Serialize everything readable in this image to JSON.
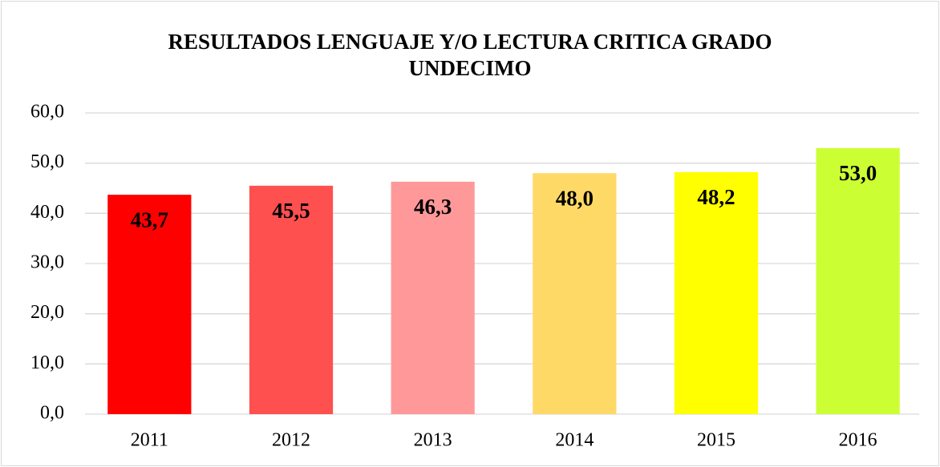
{
  "chart_data": {
    "type": "bar",
    "title": "RESULTADOS LENGUAJE Y/O LECTURA CRITICA  GRADO UNDECIMO",
    "categories": [
      "2011",
      "2012",
      "2013",
      "2014",
      "2015",
      "2016"
    ],
    "values": [
      43.7,
      45.5,
      46.3,
      48.0,
      48.2,
      53.0
    ],
    "value_labels": [
      "43,7",
      "45,5",
      "46,3",
      "48,0",
      "48,2",
      "53,0"
    ],
    "colors": [
      "#ff0000",
      "#ff5050",
      "#ff9999",
      "#ffd966",
      "#ffff00",
      "#ccff33"
    ],
    "ylim": [
      0,
      60
    ],
    "yticks": [
      {
        "value": 0,
        "label": "0,0"
      },
      {
        "value": 10,
        "label": "10,0"
      },
      {
        "value": 20,
        "label": "20,0"
      },
      {
        "value": 30,
        "label": "30,0"
      },
      {
        "value": 40,
        "label": "40,0"
      },
      {
        "value": 50,
        "label": "50,0"
      },
      {
        "value": 60,
        "label": "60,0"
      }
    ],
    "grid": true
  }
}
